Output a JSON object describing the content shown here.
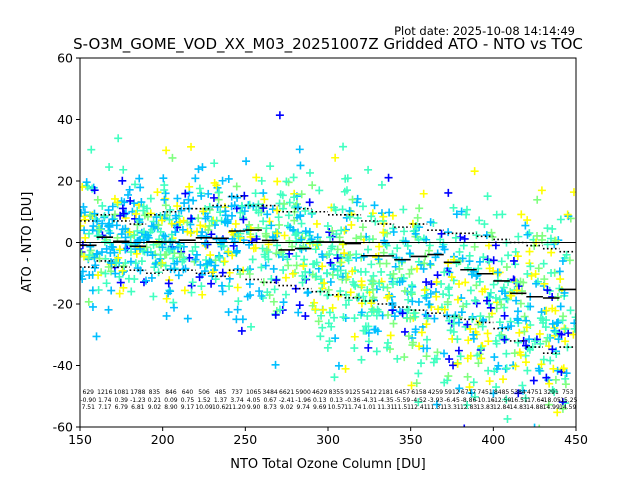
{
  "chart_data": {
    "type": "scatter",
    "plot_date": "Plot date: 2025-10-08 14:14:49",
    "title": "S-O3M_GOME_VOD_XX_M03_20251007Z Gridded ATO - NTO vs TOC",
    "xlabel": "NTO Total Ozone Column [DU]",
    "ylabel": "ATO - NTO [DU]",
    "xlim": [
      150,
      450
    ],
    "ylim": [
      -60,
      60
    ],
    "xticks": [
      150,
      200,
      250,
      300,
      350,
      400,
      450
    ],
    "yticks": [
      -60,
      -40,
      -20,
      0,
      20,
      40,
      60
    ],
    "grid": false,
    "point_colors": [
      "#0000ff",
      "#00bfff",
      "#40ffc0",
      "#7fff7f",
      "#ffff00"
    ],
    "reference_line_y": 0,
    "bins": [
      {
        "x": 155,
        "n": "629",
        "mean": "-0.90",
        "std": "7.51",
        "hi_pct": 7,
        "lo_pct": -8
      },
      {
        "x": 165,
        "n": "1216",
        "mean": "1.74",
        "std": "7.17",
        "hi_pct": 9,
        "lo_pct": -6
      },
      {
        "x": 175,
        "n": "1081",
        "mean": "0.39",
        "std": "6.79",
        "hi_pct": 7,
        "lo_pct": -8
      },
      {
        "x": 185,
        "n": "1788",
        "mean": "-1.23",
        "std": "6.81",
        "hi_pct": 6,
        "lo_pct": -9
      },
      {
        "x": 195,
        "n": "835",
        "mean": "0.21",
        "std": "9.02",
        "hi_pct": 9,
        "lo_pct": -10
      },
      {
        "x": 205,
        "n": "846",
        "mean": "0.09",
        "std": "8.90",
        "hi_pct": 10,
        "lo_pct": -9
      },
      {
        "x": 215,
        "n": "640",
        "mean": "0.75",
        "std": "9.17",
        "hi_pct": 11,
        "lo_pct": -9
      },
      {
        "x": 225,
        "n": "506",
        "mean": "1.52",
        "std": "10.09",
        "hi_pct": 11,
        "lo_pct": -10
      },
      {
        "x": 235,
        "n": "485",
        "mean": "1.37",
        "std": "10.62",
        "hi_pct": 12,
        "lo_pct": -11
      },
      {
        "x": 245,
        "n": "737",
        "mean": "3.74",
        "std": "11.20",
        "hi_pct": 15,
        "lo_pct": -9
      },
      {
        "x": 255,
        "n": "1065",
        "mean": "4.05",
        "std": "9.90",
        "hi_pct": 12,
        "lo_pct": -12
      },
      {
        "x": 265,
        "n": "3484",
        "mean": "0.67",
        "std": "8.73",
        "hi_pct": 12,
        "lo_pct": -13
      },
      {
        "x": 275,
        "n": "6621",
        "mean": "-2.41",
        "std": "9.02",
        "hi_pct": 10,
        "lo_pct": -14
      },
      {
        "x": 285,
        "n": "5900",
        "mean": "-1.96",
        "std": "9.74",
        "hi_pct": 11,
        "lo_pct": -15
      },
      {
        "x": 295,
        "n": "4629",
        "mean": "0.13",
        "std": "9.69",
        "hi_pct": 10,
        "lo_pct": -16
      },
      {
        "x": 305,
        "n": "8355",
        "mean": "0.13",
        "std": "10.57",
        "hi_pct": 9,
        "lo_pct": -17
      },
      {
        "x": 315,
        "n": "9125",
        "mean": "-0.36",
        "std": "11.74",
        "hi_pct": 9,
        "lo_pct": -18
      },
      {
        "x": 325,
        "n": "5412",
        "mean": "-4.31",
        "std": "1.01",
        "hi_pct": 7,
        "lo_pct": -19
      },
      {
        "x": 335,
        "n": "2181",
        "mean": "-4.35",
        "std": "11.31",
        "hi_pct": 6,
        "lo_pct": -20
      },
      {
        "x": 345,
        "n": "6457",
        "mean": "-5.59",
        "std": "11.51",
        "hi_pct": 5,
        "lo_pct": -21
      },
      {
        "x": 355,
        "n": "6158",
        "mean": "-4.52",
        "std": "12.41",
        "hi_pct": 6,
        "lo_pct": -22
      },
      {
        "x": 365,
        "n": "4259",
        "mean": "-3.93",
        "std": "11.31",
        "hi_pct": 4,
        "lo_pct": -23
      },
      {
        "x": 375,
        "n": "5912",
        "mean": "-6.45",
        "std": "13.31",
        "hi_pct": 3,
        "lo_pct": -24
      },
      {
        "x": 385,
        "n": "6717",
        "mean": "-8.86",
        "std": "12.83",
        "hi_pct": 3,
        "lo_pct": -25
      },
      {
        "x": 395,
        "n": "7451",
        "mean": "-10.16",
        "std": "13.83",
        "hi_pct": 2,
        "lo_pct": -26
      },
      {
        "x": 405,
        "n": "8485",
        "mean": "-12.50",
        "std": "12.84",
        "hi_pct": 1,
        "lo_pct": -28
      },
      {
        "x": 415,
        "n": "5384",
        "mean": "-16.51",
        "std": "14.83",
        "hi_pct": 0,
        "lo_pct": -32
      },
      {
        "x": 425,
        "n": "4751",
        "mean": "-17.64",
        "std": "14.88",
        "hi_pct": -1,
        "lo_pct": -34
      },
      {
        "x": 435,
        "n": "3291",
        "mean": "-18.05",
        "std": "14.99",
        "hi_pct": -2,
        "lo_pct": -36
      },
      {
        "x": 445,
        "n": "753",
        "mean": "-15.25",
        "std": "14.59",
        "hi_pct": -3,
        "lo_pct": -34
      }
    ]
  }
}
